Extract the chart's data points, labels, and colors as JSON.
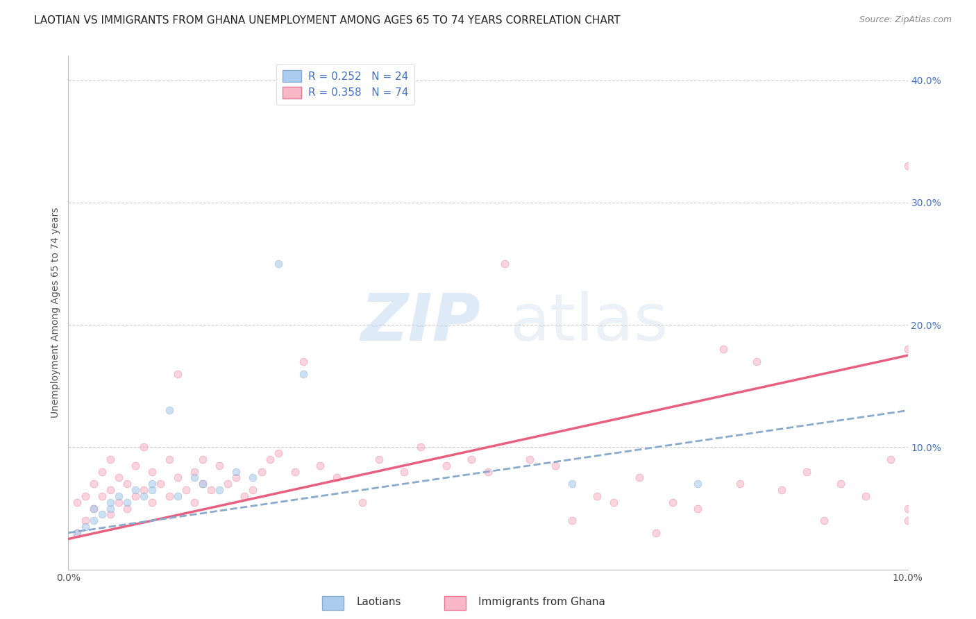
{
  "title": "LAOTIAN VS IMMIGRANTS FROM GHANA UNEMPLOYMENT AMONG AGES 65 TO 74 YEARS CORRELATION CHART",
  "source": "Source: ZipAtlas.com",
  "ylabel": "Unemployment Among Ages 65 to 74 years",
  "x_lim": [
    0.0,
    0.1
  ],
  "y_lim": [
    0.0,
    0.42
  ],
  "y_ticks": [
    0.0,
    0.1,
    0.2,
    0.3,
    0.4
  ],
  "y_tick_labels": [
    "",
    "10.0%",
    "20.0%",
    "30.0%",
    "40.0%"
  ],
  "x_ticks": [
    0.0,
    0.1
  ],
  "x_tick_labels": [
    "0.0%",
    "10.0%"
  ],
  "laotian_scatter_x": [
    0.001,
    0.002,
    0.003,
    0.003,
    0.004,
    0.005,
    0.005,
    0.006,
    0.007,
    0.008,
    0.009,
    0.01,
    0.01,
    0.012,
    0.013,
    0.015,
    0.016,
    0.018,
    0.02,
    0.022,
    0.025,
    0.028,
    0.06,
    0.075
  ],
  "laotian_scatter_y": [
    0.03,
    0.035,
    0.04,
    0.05,
    0.045,
    0.05,
    0.055,
    0.06,
    0.055,
    0.065,
    0.06,
    0.065,
    0.07,
    0.13,
    0.06,
    0.075,
    0.07,
    0.065,
    0.08,
    0.075,
    0.25,
    0.16,
    0.07,
    0.07
  ],
  "ghana_scatter_x": [
    0.001,
    0.001,
    0.002,
    0.002,
    0.003,
    0.003,
    0.004,
    0.004,
    0.005,
    0.005,
    0.005,
    0.006,
    0.006,
    0.007,
    0.007,
    0.008,
    0.008,
    0.009,
    0.009,
    0.01,
    0.01,
    0.011,
    0.012,
    0.012,
    0.013,
    0.013,
    0.014,
    0.015,
    0.015,
    0.016,
    0.016,
    0.017,
    0.018,
    0.019,
    0.02,
    0.021,
    0.022,
    0.023,
    0.024,
    0.025,
    0.027,
    0.028,
    0.03,
    0.032,
    0.035,
    0.037,
    0.04,
    0.042,
    0.045,
    0.048,
    0.05,
    0.052,
    0.055,
    0.058,
    0.06,
    0.063,
    0.065,
    0.068,
    0.07,
    0.072,
    0.075,
    0.078,
    0.08,
    0.082,
    0.085,
    0.088,
    0.09,
    0.092,
    0.095,
    0.098,
    0.1,
    0.1,
    0.1,
    0.1
  ],
  "ghana_scatter_y": [
    0.03,
    0.055,
    0.04,
    0.06,
    0.05,
    0.07,
    0.06,
    0.08,
    0.045,
    0.065,
    0.09,
    0.055,
    0.075,
    0.05,
    0.07,
    0.06,
    0.085,
    0.065,
    0.1,
    0.055,
    0.08,
    0.07,
    0.06,
    0.09,
    0.075,
    0.16,
    0.065,
    0.055,
    0.08,
    0.07,
    0.09,
    0.065,
    0.085,
    0.07,
    0.075,
    0.06,
    0.065,
    0.08,
    0.09,
    0.095,
    0.08,
    0.17,
    0.085,
    0.075,
    0.055,
    0.09,
    0.08,
    0.1,
    0.085,
    0.09,
    0.08,
    0.25,
    0.09,
    0.085,
    0.04,
    0.06,
    0.055,
    0.075,
    0.03,
    0.055,
    0.05,
    0.18,
    0.07,
    0.17,
    0.065,
    0.08,
    0.04,
    0.07,
    0.06,
    0.09,
    0.33,
    0.05,
    0.04,
    0.18
  ],
  "laotian_line_x": [
    0.0,
    0.1
  ],
  "laotian_line_y": [
    0.03,
    0.13
  ],
  "ghana_line_x": [
    0.0,
    0.1
  ],
  "ghana_line_y": [
    0.025,
    0.175
  ],
  "scatter_alpha": 0.6,
  "scatter_size": 60,
  "bg_color": "#ffffff",
  "grid_color": "#cccccc",
  "laotian_color": "#aaccee",
  "laotian_edge_color": "#88aacc",
  "ghana_color": "#f9b8c8",
  "ghana_edge_color": "#e87898",
  "laotian_line_color": "#88aacc",
  "ghana_line_color": "#e86080",
  "title_fontsize": 11,
  "source_fontsize": 9,
  "tick_fontsize": 10,
  "ylabel_fontsize": 10,
  "legend_label_1": "R = 0.252   N = 24",
  "legend_label_2": "R = 0.358   N = 74",
  "legend_color_1": "#aaccee",
  "legend_color_2": "#f9b8c8",
  "bottom_label_1": "Laotians",
  "bottom_label_2": "Immigrants from Ghana"
}
